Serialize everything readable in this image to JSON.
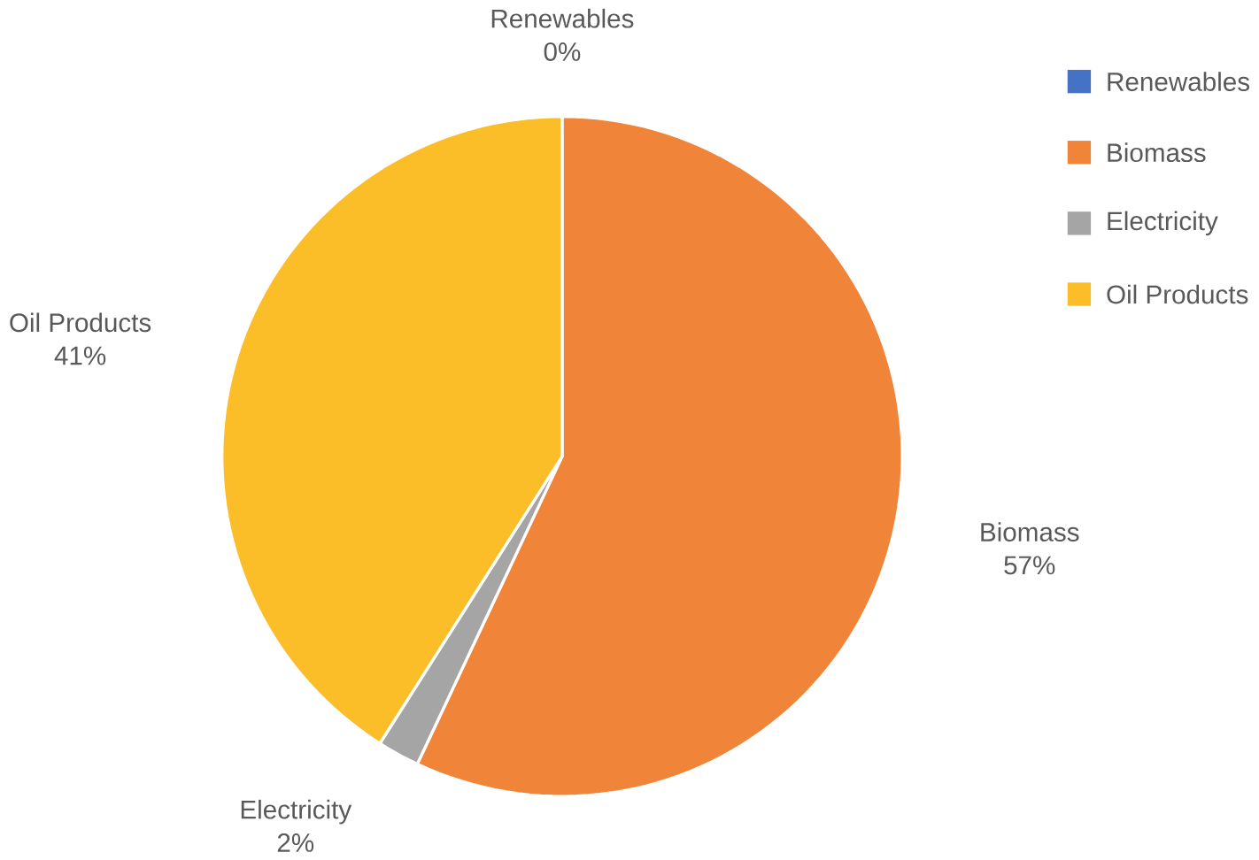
{
  "chart_data": {
    "type": "pie",
    "categories": [
      "Renewables",
      "Biomass",
      "Electricity",
      "Oil Products"
    ],
    "values": [
      0,
      57,
      2,
      41
    ],
    "colors": [
      "#4472c4",
      "#f08439",
      "#a5a5a5",
      "#fbbe28"
    ],
    "value_labels": [
      "0%",
      "57%",
      "2%",
      "41%"
    ],
    "legend": "right"
  }
}
